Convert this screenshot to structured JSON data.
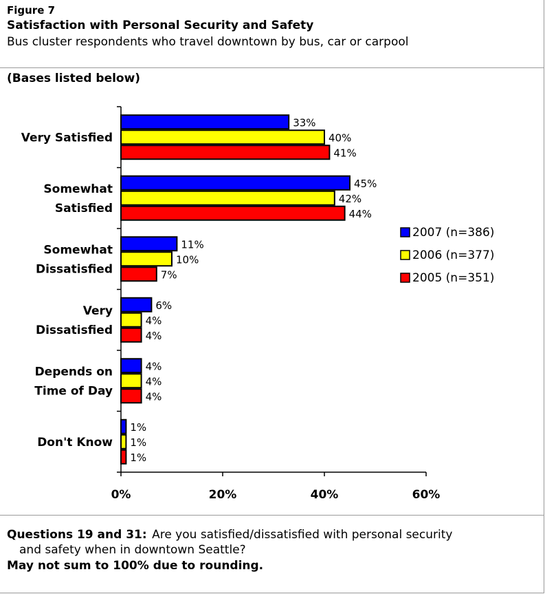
{
  "header": {
    "figure_label": "Figure 7",
    "title": "Satisfaction with Personal Security and Safety",
    "subtitle": "Bus cluster respondents who travel downtown by bus, car or carpool"
  },
  "bases_note": "(Bases listed below)",
  "footer": {
    "question_label": "Questions 19 and 31:",
    "question_text": "Are you satisfied/dissatisfied with personal security",
    "question_text_cont": "and safety when in downtown Seattle?",
    "rounding_note": "May not sum to 100% due to rounding."
  },
  "chart_data": {
    "type": "bar",
    "orientation": "horizontal",
    "categories": [
      [
        "Very Satisfied"
      ],
      [
        "Somewhat",
        "Satisfied"
      ],
      [
        "Somewhat",
        "Dissatisfied"
      ],
      [
        "Very",
        "Dissatisfied"
      ],
      [
        "Depends on",
        "Time of Day"
      ],
      [
        "Don't Know"
      ]
    ],
    "series": [
      {
        "name": "2007 (n=386)",
        "color": "#0000ff",
        "values": [
          33,
          45,
          11,
          6,
          4,
          1
        ],
        "labels": [
          "33%",
          "45%",
          "11%",
          "6%",
          "4%",
          "1%"
        ]
      },
      {
        "name": "2006 (n=377)",
        "color": "#ffff00",
        "values": [
          40,
          42,
          10,
          4,
          4,
          1
        ],
        "labels": [
          "40%",
          "42%",
          "10%",
          "4%",
          "4%",
          "1%"
        ]
      },
      {
        "name": "2005 (n=351)",
        "color": "#ff0000",
        "values": [
          41,
          44,
          7,
          4,
          4,
          1
        ],
        "labels": [
          "41%",
          "44%",
          "7%",
          "4%",
          "4%",
          "1%"
        ]
      }
    ],
    "xlim": [
      0,
      60
    ],
    "x_ticks": [
      0,
      20,
      40,
      60
    ],
    "x_tick_labels": [
      "0%",
      "20%",
      "40%",
      "60%"
    ],
    "legend_position": "right",
    "grid": false
  }
}
